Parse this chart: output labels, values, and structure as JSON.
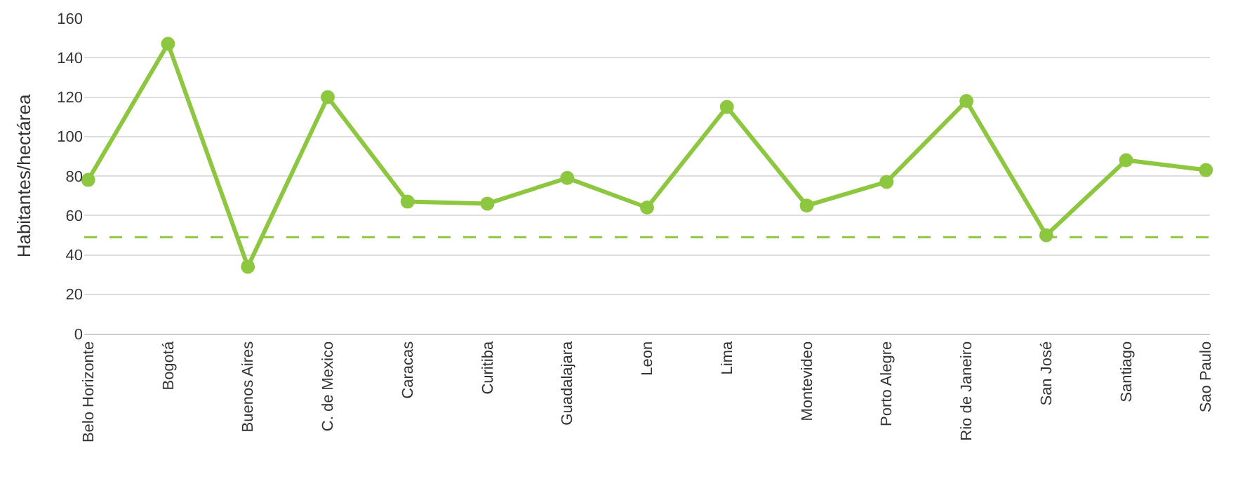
{
  "chart_data": {
    "type": "line",
    "ylabel": "Habitantes/hectárea",
    "categories": [
      "Belo Horizonte",
      "Bogotá",
      "Buenos Aires",
      "C. de Mexico",
      "Caracas",
      "Curitiba",
      "Guadalajara",
      "Leon",
      "Lima",
      "Montevideo",
      "Porto Alegre",
      "Rio de Janeiro",
      "San José",
      "Santiago",
      "Sao Paulo"
    ],
    "series": [
      {
        "color": "#8dc63f",
        "values": [
          78,
          147,
          34,
          120,
          67,
          66,
          79,
          64,
          115,
          65,
          77,
          118,
          50,
          88,
          83
        ]
      }
    ],
    "ylim": [
      0,
      160
    ],
    "yticks": [
      0,
      20,
      40,
      60,
      80,
      100,
      120,
      140,
      160
    ],
    "grid": "y",
    "marker": "circle",
    "line_style": "solid",
    "legend": false,
    "ref_lines": [
      {
        "axis": "y",
        "value": 49,
        "color": "#8dc63f",
        "line_style": "dashed"
      }
    ]
  }
}
